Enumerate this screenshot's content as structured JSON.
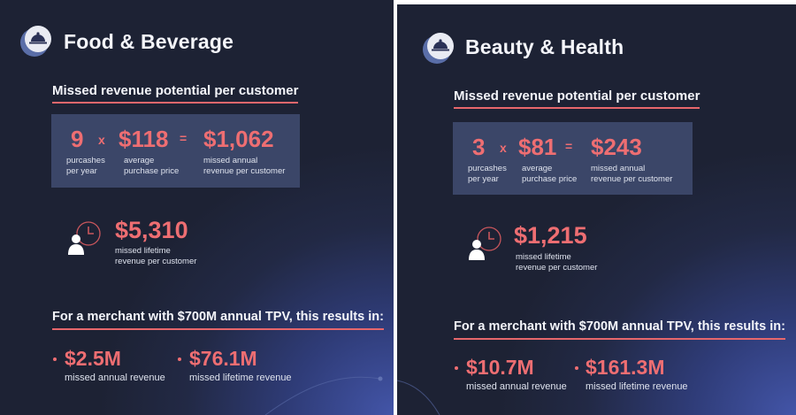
{
  "panels": [
    {
      "title": "Food & Beverage",
      "subhead": "Missed revenue potential per customer",
      "equation": {
        "purchases": "9",
        "purchases_label_1": "purcashes",
        "purchases_label_2": "per year",
        "times": "x",
        "price": "$118",
        "price_label_1": "average",
        "price_label_2": "purchase price",
        "equals": "=",
        "annual": "$1,062",
        "annual_label_1": "missed annual",
        "annual_label_2": "revenue per customer"
      },
      "lifetime": {
        "value": "$5,310",
        "label_1": "missed lifetime",
        "label_2": "revenue per customer"
      },
      "merchant_heading": "For a merchant with $700M annual TPV, this results in:",
      "results": [
        {
          "value": "$2.5M",
          "label": "missed annual revenue"
        },
        {
          "value": "$76.1M",
          "label": "missed lifetime revenue"
        }
      ]
    },
    {
      "title": "Beauty & Health",
      "subhead": "Missed revenue potential per customer",
      "equation": {
        "purchases": "3",
        "purchases_label_1": "purcashes",
        "purchases_label_2": "per year",
        "times": "x",
        "price": "$81",
        "price_label_1": "average",
        "price_label_2": "purchase price",
        "equals": "=",
        "annual": "$243",
        "annual_label_1": "missed annual",
        "annual_label_2": "revenue per customer"
      },
      "lifetime": {
        "value": "$1,215",
        "label_1": "missed lifetime",
        "label_2": "revenue per customer"
      },
      "merchant_heading": "For a merchant with $700M annual TPV, this results in:",
      "results": [
        {
          "value": "$10.7M",
          "label": "missed annual revenue"
        },
        {
          "value": "$161.3M",
          "label": "missed lifetime revenue"
        }
      ]
    }
  ],
  "icons": {
    "logo": "cloche-logo-icon",
    "person": "person-clock-icon"
  },
  "colors": {
    "accent": "#ee6e72",
    "background": "#222945",
    "box": "#3b4668"
  }
}
